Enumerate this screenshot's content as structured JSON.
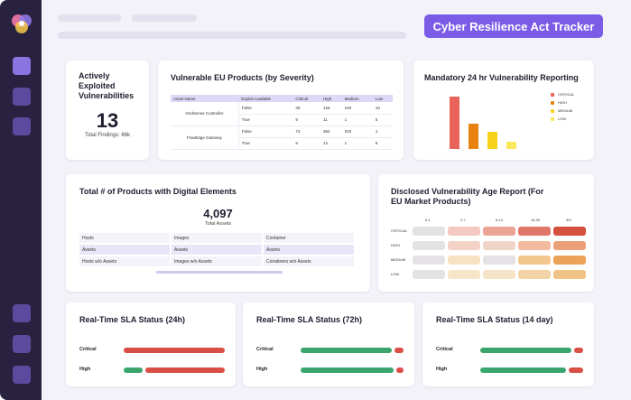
{
  "header": {
    "title": "Cyber Resilience Act Tracker"
  },
  "colors": {
    "accent": "#7b5ce6",
    "sidebar": "#28213f",
    "critical": "#e8635a",
    "high": "#e8820f",
    "medium": "#f7d21a",
    "low": "#fbe95c",
    "green": "#3aa66e",
    "red": "#d94f45"
  },
  "exploited": {
    "title": "Actively Exploited Vulnerabilities",
    "value": "13",
    "total": "Total Findings: 66k"
  },
  "vulnerable": {
    "title": "Vulnerable EU Products (by Severity)",
    "headers": [
      "Asset Name",
      "Exploit Available",
      "Critical",
      "High",
      "Medium",
      "Low"
    ],
    "rows": [
      {
        "product": "GridSense Controller",
        "exploit": "False",
        "critical": "45",
        "high": "125",
        "medium": "249",
        "low": "10"
      },
      {
        "product": "",
        "exploit": "True",
        "critical": "9",
        "high": "11",
        "medium": "1",
        "low": "5"
      },
      {
        "product": "FlowEdge Gateway",
        "exploit": "False",
        "critical": "74",
        "high": "384",
        "medium": "203",
        "low": "1"
      },
      {
        "product": "",
        "exploit": "True",
        "critical": "9",
        "high": "14",
        "medium": "1",
        "low": "8"
      }
    ]
  },
  "mandatory": {
    "title": "Mandatory 24 hr Vulnerability Reporting",
    "chart_data": {
      "type": "bar",
      "categories": [
        "CRITICAL",
        "HIGH",
        "MEDIUM",
        "LOW"
      ],
      "values": [
        100,
        48,
        32,
        14
      ],
      "ylim": [
        0,
        100
      ],
      "legend": "right"
    }
  },
  "products": {
    "title": "Total # of Products with Digital Elements",
    "value": "4,097",
    "value_label": "Total Assets",
    "columns": [
      [
        "Hosts",
        "Assets",
        "Hosts w/o Assets"
      ],
      [
        "Images",
        "Assets",
        "Images w/o Assets"
      ],
      [
        "Container",
        "Assets",
        "Conatiners w/o Assets"
      ]
    ]
  },
  "age": {
    "title": "Disclosed Vulnerability Age Report (For EU Market Products)",
    "columns": [
      "0-1",
      "2-7",
      "8-14",
      "15-30",
      "30+"
    ],
    "rows": [
      {
        "label": "CRITICAL",
        "colors": [
          "#e4e2e4",
          "#f4c9c1",
          "#eba396",
          "#e0776a",
          "#d6503f"
        ]
      },
      {
        "label": "HIGH",
        "colors": [
          "#e4e2e4",
          "#f4d3c6",
          "#f2d5c9",
          "#f2bb9f",
          "#eaa079"
        ]
      },
      {
        "label": "MEDIUM",
        "colors": [
          "#e4e2e4",
          "#f8e2c4",
          "#e4e2e4",
          "#f4c68f",
          "#eda25a"
        ]
      },
      {
        "label": "LOW",
        "colors": [
          "#e4e2e4",
          "#f8e6c8",
          "#f6e4c9",
          "#f3d2a6",
          "#f0c487"
        ]
      }
    ]
  },
  "sla": [
    {
      "title": "Real-Time SLA Status (24h)",
      "rows": [
        {
          "label": "Critical",
          "green": 0.0,
          "red": 1.0
        },
        {
          "label": "High",
          "green": 0.2,
          "red": 0.8
        }
      ]
    },
    {
      "title": "Real-Time SLA Status (72h)",
      "rows": [
        {
          "label": "Critical",
          "green": 0.9,
          "red": 0.1
        },
        {
          "label": "High",
          "green": 0.92,
          "red": 0.08
        }
      ]
    },
    {
      "title": "Real-Time SLA Status (14 day)",
      "rows": [
        {
          "label": "Critical",
          "green": 0.9,
          "red": 0.1
        },
        {
          "label": "High",
          "green": 0.85,
          "red": 0.15
        }
      ]
    }
  ]
}
